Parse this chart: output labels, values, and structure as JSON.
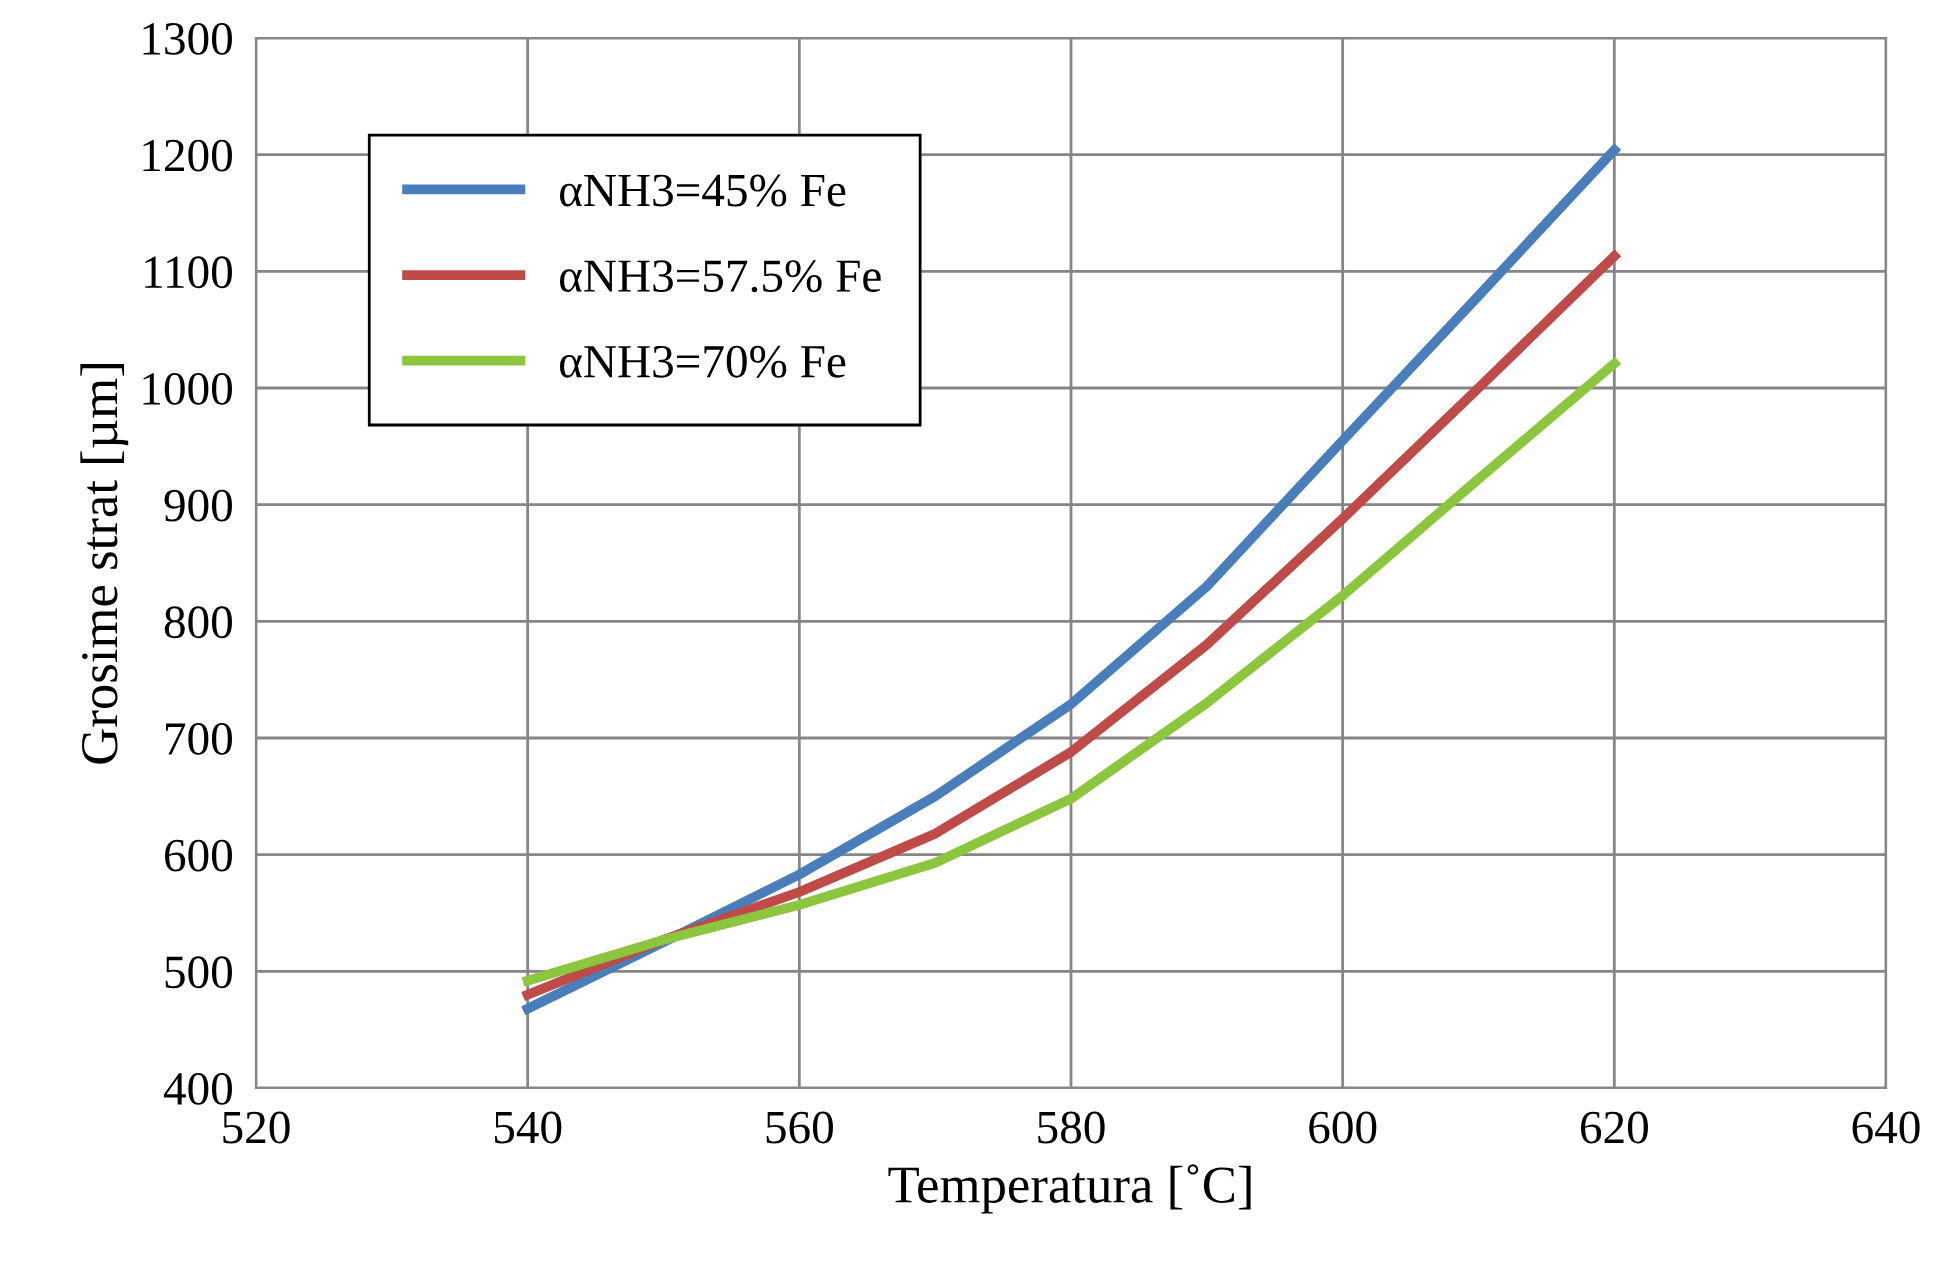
{
  "chart_data": {
    "type": "line",
    "xlabel": "Temperatura [˚C]",
    "ylabel": "Grosime strat [µm]",
    "x": [
      540,
      550,
      560,
      570,
      580,
      590,
      600,
      610,
      620
    ],
    "series": [
      {
        "name": "αNH3=45% Fe",
        "color": "#4a7ebb",
        "values": [
          468,
          525,
          583,
          650,
          729,
          830,
          955,
          1079,
          1204
        ]
      },
      {
        "name": "αNH3=57.5% Fe",
        "color": "#be4b48",
        "values": [
          480,
          527,
          568,
          618,
          688,
          780,
          888,
          1000,
          1113
        ]
      },
      {
        "name": "αNH3=70% Fe",
        "color": "#8cc63f",
        "values": [
          492,
          527,
          557,
          593,
          648,
          730,
          822,
          922,
          1021
        ]
      }
    ],
    "xlim": [
      520,
      640
    ],
    "xticks": [
      520,
      540,
      560,
      580,
      600,
      620,
      640
    ],
    "ylim": [
      400,
      1300
    ],
    "yticks": [
      400,
      500,
      600,
      700,
      800,
      900,
      1000,
      1100,
      1200,
      1300
    ],
    "grid": true,
    "legend": "top left",
    "marker": "none",
    "line_style": "solid"
  }
}
